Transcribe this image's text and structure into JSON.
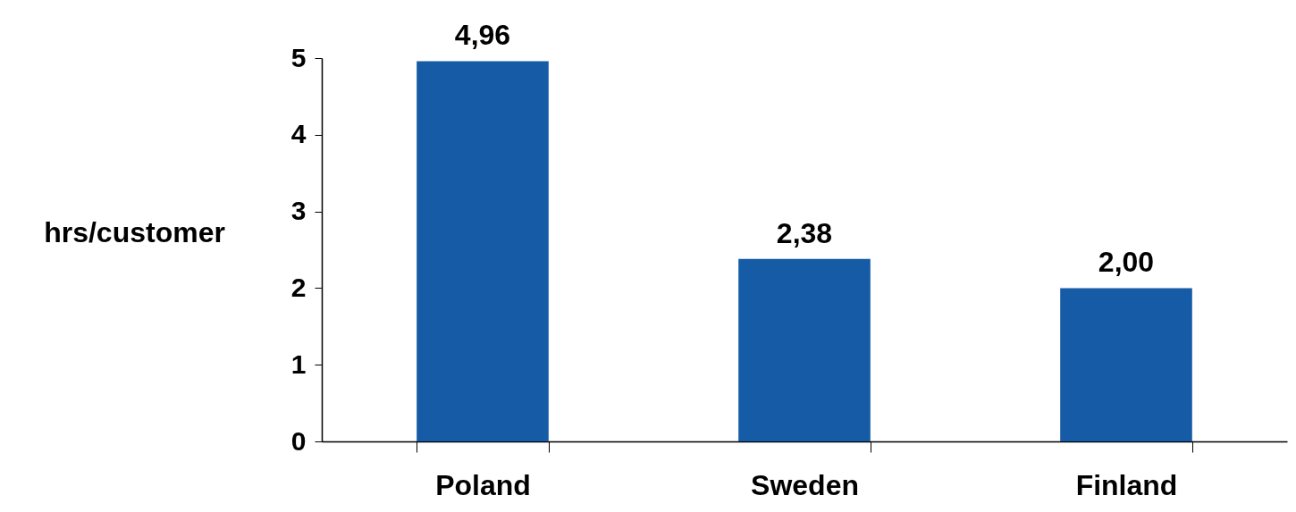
{
  "chart_data": {
    "type": "bar",
    "ylabel": "hrs/customer",
    "categories": [
      "Poland",
      "Sweden",
      "Finland"
    ],
    "values": [
      4.96,
      2.38,
      2.0
    ],
    "value_labels": [
      "4,96",
      "2,38",
      "2,00"
    ],
    "color": "#155ba6",
    "ylim": [
      0,
      5
    ],
    "yticks": [
      0,
      1,
      2,
      3,
      4,
      5
    ]
  }
}
